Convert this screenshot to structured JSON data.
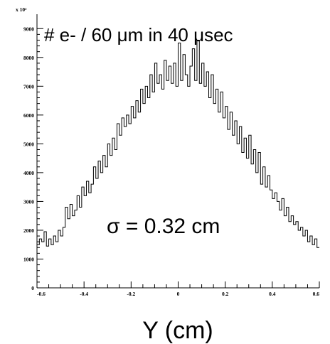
{
  "chart_data": {
    "type": "line",
    "title": "# e- / 60 μm in 40 μsec",
    "annotation": "σ = 0.32 cm",
    "xlabel": "Y (cm)",
    "ylabel": "",
    "y_multiplier_label": "x 10²",
    "xlim": [
      -0.6,
      0.6
    ],
    "ylim": [
      0,
      9500
    ],
    "x_ticks": [
      "-0.6",
      "-0.4",
      "-0.2",
      "0",
      "0.2",
      "0.4",
      "0.6"
    ],
    "y_ticks": [
      "0",
      "1000",
      "2000",
      "3000",
      "4000",
      "5000",
      "6000",
      "7000",
      "8000",
      "9000"
    ],
    "grid": false,
    "line_color": "#000000",
    "series": [
      {
        "x": [
          -0.6,
          -0.59,
          -0.58,
          -0.57,
          -0.56,
          -0.55,
          -0.54,
          -0.53,
          -0.52,
          -0.51,
          -0.5,
          -0.49,
          -0.48,
          -0.47,
          -0.46,
          -0.45,
          -0.44,
          -0.43,
          -0.42,
          -0.41,
          -0.4,
          -0.39,
          -0.38,
          -0.37,
          -0.36,
          -0.35,
          -0.34,
          -0.33,
          -0.32,
          -0.31,
          -0.3,
          -0.29,
          -0.28,
          -0.27,
          -0.26,
          -0.25,
          -0.24,
          -0.23,
          -0.22,
          -0.21,
          -0.2,
          -0.19,
          -0.18,
          -0.17,
          -0.16,
          -0.15,
          -0.14,
          -0.13,
          -0.12,
          -0.11,
          -0.1,
          -0.09,
          -0.08,
          -0.07,
          -0.06,
          -0.05,
          -0.04,
          -0.03,
          -0.02,
          -0.01,
          0.0,
          0.01,
          0.02,
          0.03,
          0.04,
          0.05,
          0.06,
          0.07,
          0.08,
          0.09,
          0.1,
          0.11,
          0.12,
          0.13,
          0.14,
          0.15,
          0.16,
          0.17,
          0.18,
          0.19,
          0.2,
          0.21,
          0.22,
          0.23,
          0.24,
          0.25,
          0.26,
          0.27,
          0.28,
          0.29,
          0.3,
          0.31,
          0.32,
          0.33,
          0.34,
          0.35,
          0.36,
          0.37,
          0.38,
          0.39,
          0.4,
          0.41,
          0.42,
          0.43,
          0.44,
          0.45,
          0.46,
          0.47,
          0.48,
          0.49,
          0.5,
          0.51,
          0.52,
          0.53,
          0.54,
          0.55,
          0.56,
          0.57,
          0.58,
          0.59
        ],
        "values": [
          1500,
          1700,
          1600,
          1950,
          1450,
          1700,
          1500,
          1800,
          1600,
          2000,
          1800,
          2100,
          2800,
          2400,
          2900,
          2500,
          2700,
          3200,
          2800,
          3500,
          3200,
          3700,
          3300,
          3600,
          4200,
          3800,
          4400,
          4000,
          4600,
          4200,
          5000,
          4600,
          5200,
          4800,
          5700,
          5300,
          5900,
          5600,
          6000,
          5700,
          6300,
          5900,
          6500,
          6100,
          6900,
          6400,
          7000,
          6600,
          7400,
          6800,
          7800,
          7100,
          7400,
          6900,
          7900,
          7200,
          7700,
          7100,
          7800,
          7000,
          8500,
          7200,
          8100,
          7400,
          7000,
          7700,
          8300,
          7200,
          8600,
          7100,
          7800,
          7000,
          7500,
          6600,
          7400,
          6400,
          6900,
          6100,
          6800,
          5900,
          6300,
          5500,
          6100,
          5300,
          5800,
          5000,
          5600,
          4700,
          5200,
          4500,
          5300,
          4300,
          4800,
          4000,
          4700,
          3600,
          4200,
          3500,
          3900,
          3400,
          3100,
          3300,
          3000,
          2700,
          3100,
          2500,
          2800,
          2300,
          2500,
          2200,
          2300,
          2000,
          2100,
          1800,
          2000,
          1600,
          1800,
          1500,
          1700,
          1400
        ]
      }
    ]
  }
}
